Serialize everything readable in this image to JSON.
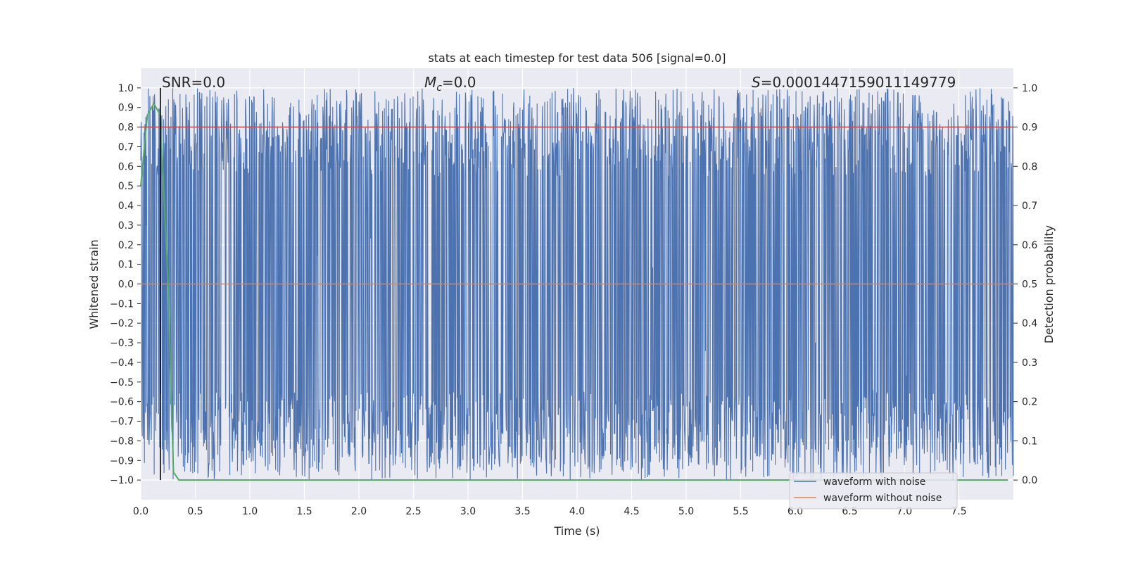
{
  "chart_data": {
    "type": "line",
    "title": "stats at each timestep for test data 506 [signal=0.0]",
    "xlabel": "Time (s)",
    "ylabel_left": "Whitened strain",
    "ylabel_right": "Detection probability",
    "xlim": [
      0.0,
      8.0
    ],
    "ylim_left": [
      -1.1,
      1.1
    ],
    "ylim_right": [
      -0.05,
      1.05
    ],
    "x_ticks": [
      0.0,
      0.5,
      1.0,
      1.5,
      2.0,
      2.5,
      3.0,
      3.5,
      4.0,
      4.5,
      5.0,
      5.5,
      6.0,
      6.5,
      7.0,
      7.5
    ],
    "x_tick_labels": [
      "0.0",
      "0.5",
      "1.0",
      "1.5",
      "2.0",
      "2.5",
      "3.0",
      "3.5",
      "4.0",
      "4.5",
      "5.0",
      "5.5",
      "6.0",
      "6.5",
      "7.0",
      "7.5"
    ],
    "y_left_ticks": [
      1.0,
      0.9,
      0.8,
      0.7,
      0.6,
      0.5,
      0.4,
      0.3,
      0.2,
      0.1,
      0.0,
      -0.1,
      -0.2,
      -0.3,
      -0.4,
      -0.5,
      -0.6,
      -0.7,
      -0.8,
      -0.9,
      -1.0
    ],
    "y_left_tick_labels": [
      "1.0",
      "0.9",
      "0.8",
      "0.7",
      "0.6",
      "0.5",
      "0.4",
      "0.3",
      "0.2",
      "0.1",
      "0.0",
      "−0.1",
      "−0.2",
      "−0.3",
      "−0.4",
      "−0.5",
      "−0.6",
      "−0.7",
      "−0.8",
      "−0.9",
      "−1.0"
    ],
    "y_right_ticks": [
      1.0,
      0.9,
      0.8,
      0.7,
      0.6,
      0.5,
      0.4,
      0.3,
      0.2,
      0.1,
      0.0
    ],
    "y_right_tick_labels": [
      "1.0",
      "0.9",
      "0.8",
      "0.7",
      "0.6",
      "0.5",
      "0.4",
      "0.3",
      "0.2",
      "0.1",
      "0.0"
    ],
    "grid": true,
    "legend_position": "lower-right",
    "annotations": {
      "snr": "SNR=0.0",
      "mc_symbol": "M",
      "mc_sub": "c",
      "mc_value": "=0.0",
      "s_symbol": "S",
      "s_value": "=0.0001447159011149779"
    },
    "marker_x": 0.18,
    "threshold_probability": 0.9,
    "series": [
      {
        "name": "waveform with noise",
        "axis": "left",
        "color": "#4c72b0",
        "description_range": [
          -1.0,
          1.0
        ]
      },
      {
        "name": "waveform without noise",
        "axis": "left",
        "color": "#dd8452",
        "x": [
          0.0,
          8.0
        ],
        "y": [
          0.0,
          0.0
        ]
      },
      {
        "axis": "right",
        "color": "#55a868",
        "x": [
          0.0,
          0.06,
          0.12,
          0.18,
          0.25,
          0.3,
          0.35,
          0.4,
          1.0,
          2.0,
          3.0,
          4.0,
          5.0,
          6.0,
          7.0,
          7.95
        ],
        "y": [
          0.75,
          0.93,
          0.96,
          0.93,
          0.5,
          0.02,
          0.0,
          0.0,
          0.0,
          0.0,
          0.0,
          0.0,
          0.0,
          0.0,
          0.0,
          0.0
        ]
      }
    ],
    "colors": {
      "plot_background": "#eaeaf2",
      "grid": "#ffffff",
      "threshold_line": "#c44e52",
      "marker_line": "#000000"
    }
  }
}
